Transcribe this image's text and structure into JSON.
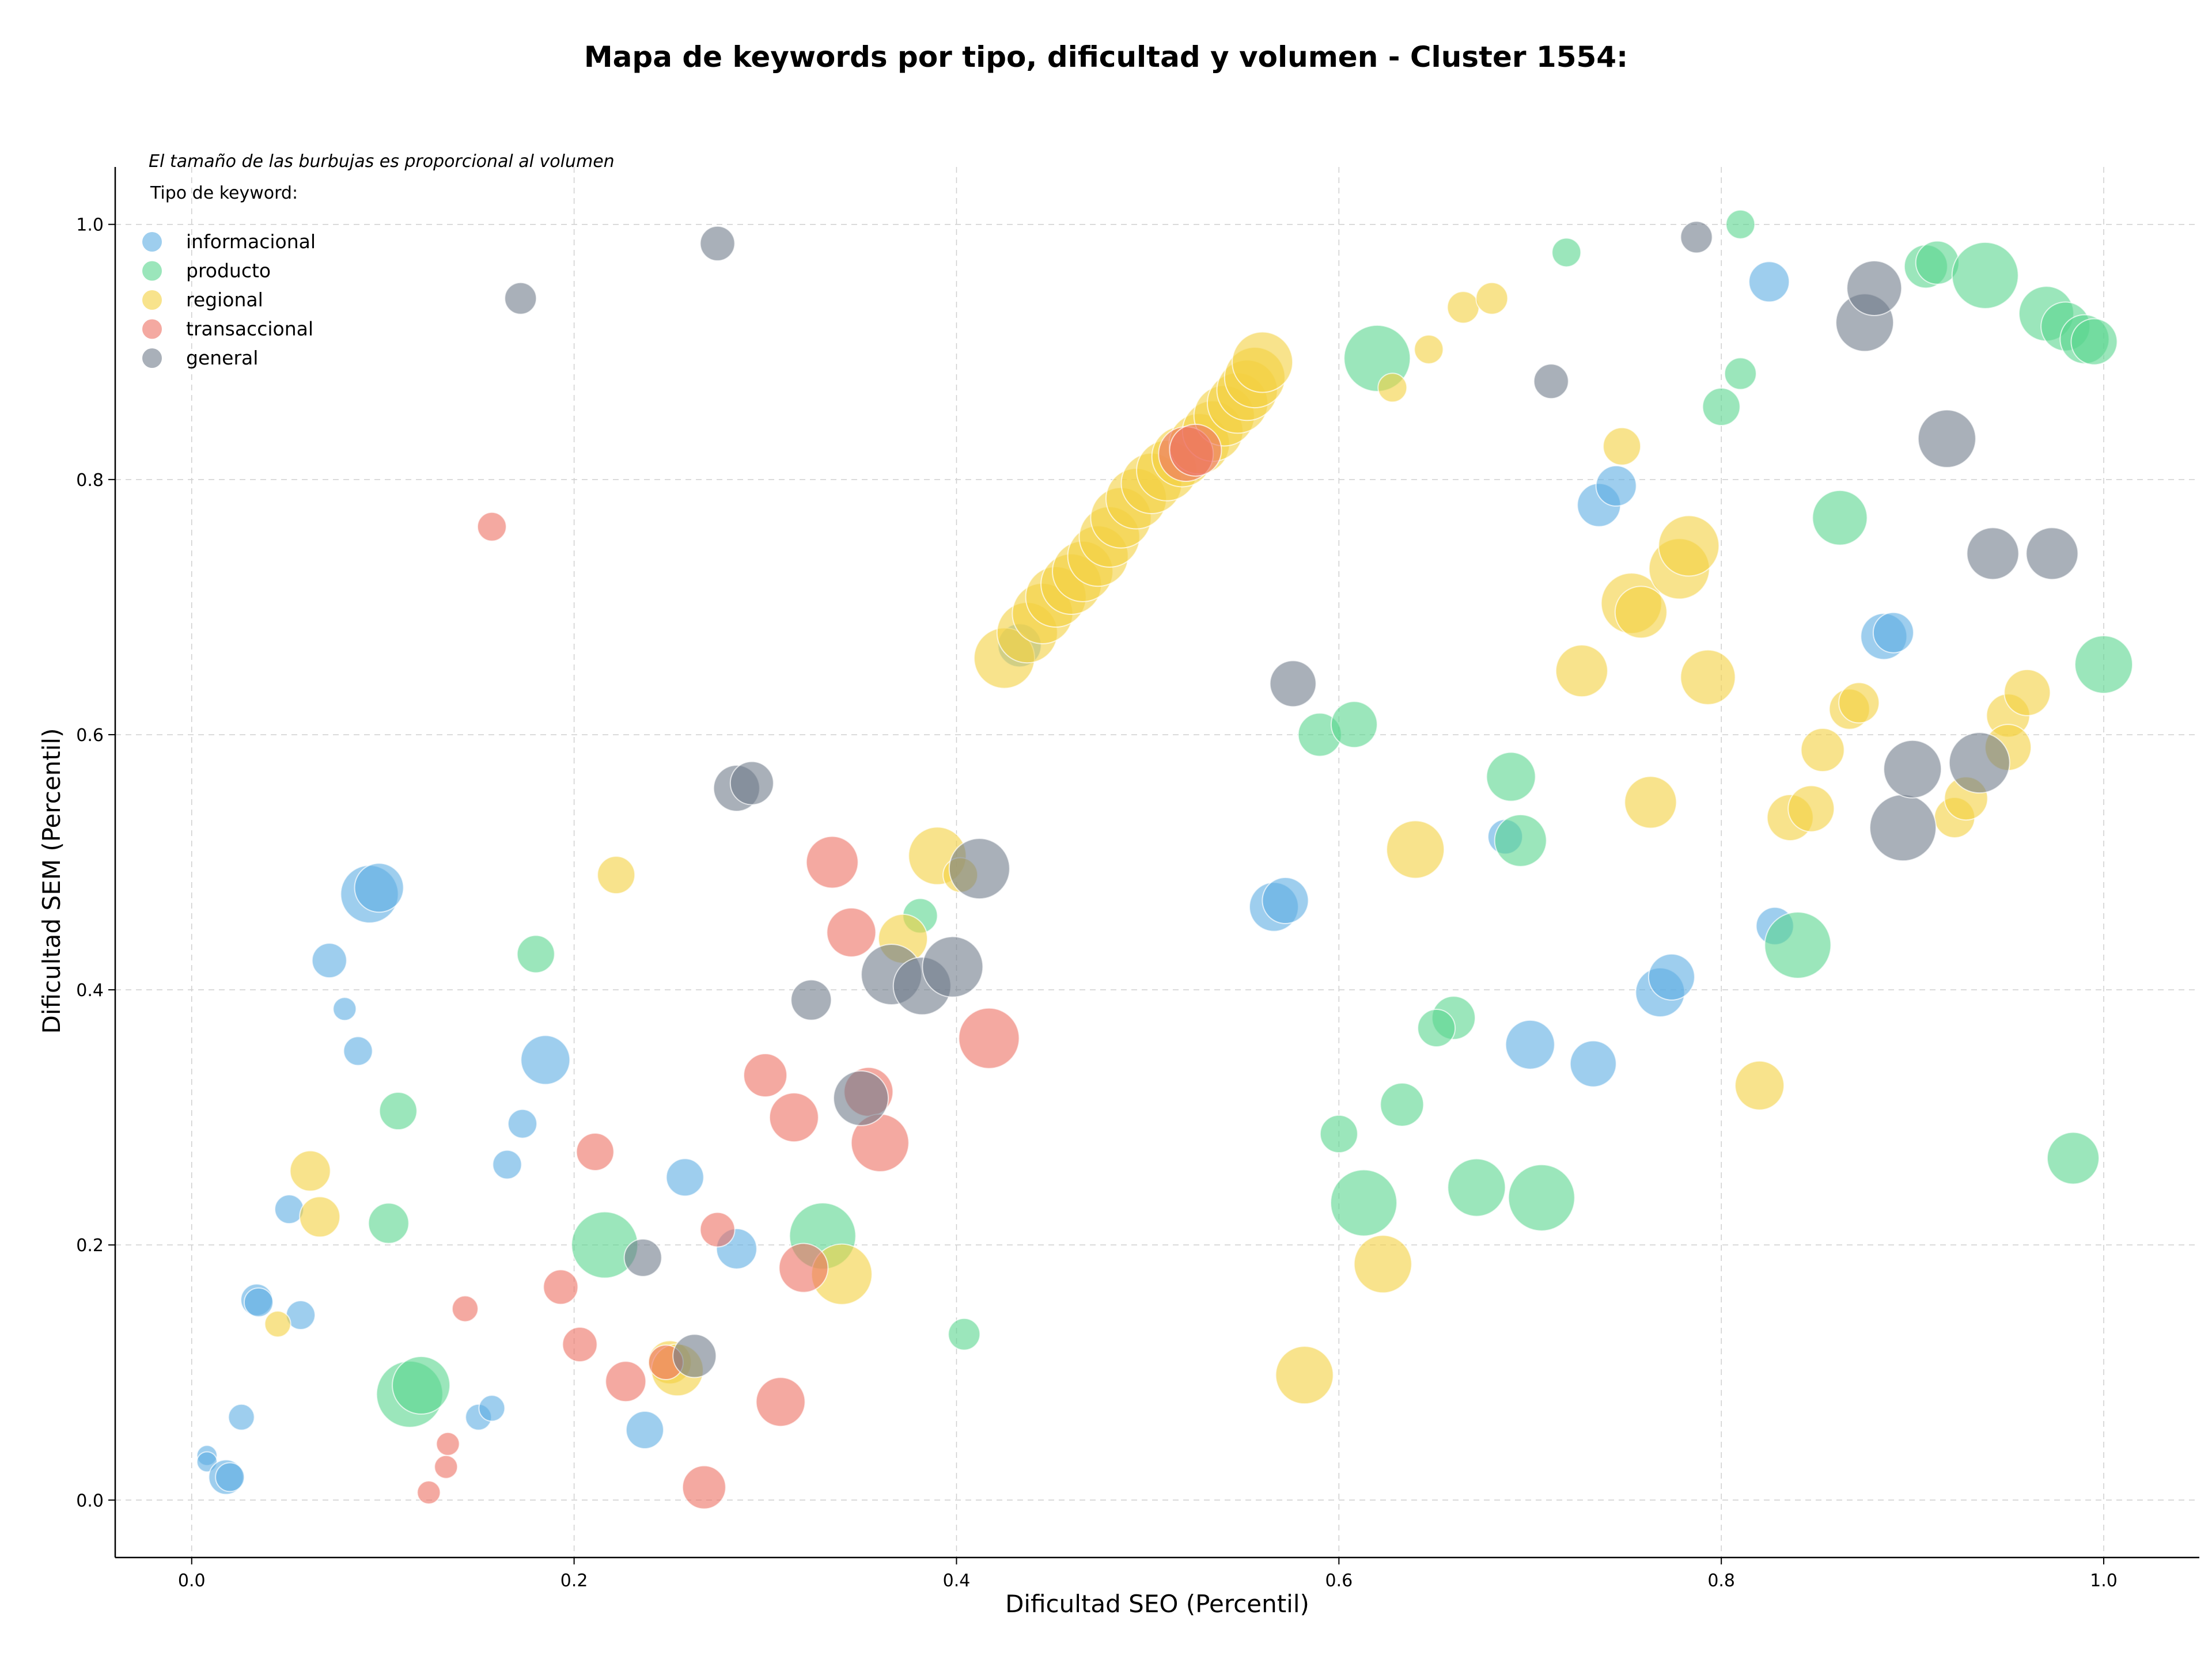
{
  "chart_data": {
    "type": "scatter",
    "title": "Mapa de keywords por tipo, dificultad y volumen - Cluster 1554:",
    "xlabel": "Dificultad SEO (Percentil)",
    "ylabel": "Dificultad SEM (Percentil)",
    "xlim": [
      -0.04,
      1.05
    ],
    "ylim": [
      -0.045,
      1.045
    ],
    "xticks": [
      0.0,
      0.2,
      0.4,
      0.6,
      0.8,
      1.0
    ],
    "yticks": [
      0.0,
      0.2,
      0.4,
      0.6,
      0.8,
      1.0
    ],
    "xtick_labels": [
      "0.0",
      "0.2",
      "0.4",
      "0.6",
      "0.8",
      "1.0"
    ],
    "ytick_labels": [
      "0.0",
      "0.2",
      "0.4",
      "0.6",
      "0.8",
      "1.0"
    ],
    "grid": true,
    "legend_position": "top-left",
    "note": "El tamaño de las burbujas es proporcional al volumen",
    "legend_title": "Tipo de keyword:",
    "series": [
      {
        "name": "informacional",
        "color": "#5dade2",
        "points": [
          [
            0.008,
            0.035,
            0.35
          ],
          [
            0.008,
            0.03,
            0.35
          ],
          [
            0.018,
            0.018,
            0.6
          ],
          [
            0.02,
            0.018,
            0.5
          ],
          [
            0.026,
            0.065,
            0.45
          ],
          [
            0.034,
            0.157,
            0.55
          ],
          [
            0.035,
            0.155,
            0.5
          ],
          [
            0.057,
            0.145,
            0.5
          ],
          [
            0.051,
            0.228,
            0.5
          ],
          [
            0.072,
            0.423,
            0.6
          ],
          [
            0.08,
            0.385,
            0.4
          ],
          [
            0.087,
            0.352,
            0.5
          ],
          [
            0.093,
            0.475,
            1.0
          ],
          [
            0.098,
            0.48,
            0.85
          ],
          [
            0.15,
            0.065,
            0.45
          ],
          [
            0.157,
            0.072,
            0.45
          ],
          [
            0.165,
            0.263,
            0.5
          ],
          [
            0.173,
            0.295,
            0.5
          ],
          [
            0.185,
            0.345,
            0.85
          ],
          [
            0.237,
            0.055,
            0.65
          ],
          [
            0.258,
            0.253,
            0.65
          ],
          [
            0.285,
            0.197,
            0.7
          ],
          [
            0.433,
            0.67,
            0.75
          ],
          [
            0.566,
            0.465,
            0.85
          ],
          [
            0.572,
            0.47,
            0.8
          ],
          [
            0.687,
            0.52,
            0.6
          ],
          [
            0.7,
            0.357,
            0.85
          ],
          [
            0.733,
            0.342,
            0.8
          ],
          [
            0.736,
            0.78,
            0.75
          ],
          [
            0.745,
            0.795,
            0.7
          ],
          [
            0.768,
            0.398,
            0.85
          ],
          [
            0.774,
            0.41,
            0.8
          ],
          [
            0.825,
            0.955,
            0.7
          ],
          [
            0.828,
            0.45,
            0.65
          ],
          [
            0.885,
            0.677,
            0.8
          ],
          [
            0.89,
            0.68,
            0.7
          ]
        ]
      },
      {
        "name": "producto",
        "color": "#58d68d",
        "points": [
          [
            0.108,
            0.305,
            0.65
          ],
          [
            0.103,
            0.217,
            0.7
          ],
          [
            0.114,
            0.083,
            1.15
          ],
          [
            0.12,
            0.09,
            1.0
          ],
          [
            0.18,
            0.428,
            0.65
          ],
          [
            0.216,
            0.2,
            1.15
          ],
          [
            0.33,
            0.207,
            1.15
          ],
          [
            0.381,
            0.458,
            0.6
          ],
          [
            0.404,
            0.13,
            0.55
          ],
          [
            0.59,
            0.6,
            0.75
          ],
          [
            0.608,
            0.608,
            0.8
          ],
          [
            0.6,
            0.287,
            0.65
          ],
          [
            0.62,
            0.895,
            1.15
          ],
          [
            0.613,
            0.233,
            1.15
          ],
          [
            0.633,
            0.31,
            0.75
          ],
          [
            0.66,
            0.378,
            0.75
          ],
          [
            0.651,
            0.37,
            0.65
          ],
          [
            0.69,
            0.567,
            0.85
          ],
          [
            0.695,
            0.517,
            0.9
          ],
          [
            0.672,
            0.245,
            1.0
          ],
          [
            0.706,
            0.237,
            1.15
          ],
          [
            0.719,
            0.978,
            0.5
          ],
          [
            0.81,
            1.0,
            0.5
          ],
          [
            0.81,
            0.883,
            0.55
          ],
          [
            0.8,
            0.857,
            0.65
          ],
          [
            0.862,
            0.77,
            0.95
          ],
          [
            0.84,
            0.435,
            1.15
          ],
          [
            0.907,
            0.967,
            0.75
          ],
          [
            0.913,
            0.97,
            0.75
          ],
          [
            0.938,
            0.96,
            1.15
          ],
          [
            0.97,
            0.93,
            0.95
          ],
          [
            0.98,
            0.92,
            0.85
          ],
          [
            0.99,
            0.91,
            0.85
          ],
          [
            0.995,
            0.908,
            0.8
          ],
          [
            1.0,
            0.655,
            1.0
          ],
          [
            0.984,
            0.268,
            0.9
          ]
        ]
      },
      {
        "name": "regional",
        "color": "#f4d03f",
        "points": [
          [
            0.045,
            0.138,
            0.45
          ],
          [
            0.062,
            0.258,
            0.7
          ],
          [
            0.067,
            0.222,
            0.7
          ],
          [
            0.222,
            0.49,
            0.65
          ],
          [
            0.25,
            0.108,
            0.75
          ],
          [
            0.254,
            0.102,
            0.9
          ],
          [
            0.34,
            0.177,
            1.05
          ],
          [
            0.372,
            0.44,
            0.85
          ],
          [
            0.39,
            0.505,
            1.0
          ],
          [
            0.402,
            0.49,
            0.6
          ],
          [
            0.425,
            0.66,
            1.05
          ],
          [
            0.437,
            0.68,
            1.05
          ],
          [
            0.445,
            0.695,
            1.05
          ],
          [
            0.452,
            0.708,
            1.05
          ],
          [
            0.46,
            0.718,
            1.05
          ],
          [
            0.466,
            0.728,
            1.05
          ],
          [
            0.474,
            0.74,
            1.05
          ],
          [
            0.48,
            0.755,
            1.05
          ],
          [
            0.486,
            0.77,
            1.05
          ],
          [
            0.494,
            0.785,
            1.05
          ],
          [
            0.502,
            0.797,
            1.05
          ],
          [
            0.51,
            0.807,
            1.05
          ],
          [
            0.518,
            0.818,
            1.05
          ],
          [
            0.527,
            0.828,
            1.05
          ],
          [
            0.534,
            0.838,
            1.05
          ],
          [
            0.54,
            0.85,
            1.05
          ],
          [
            0.547,
            0.86,
            1.05
          ],
          [
            0.552,
            0.87,
            1.05
          ],
          [
            0.556,
            0.88,
            1.05
          ],
          [
            0.56,
            0.892,
            1.05
          ],
          [
            0.582,
            0.098,
            1.0
          ],
          [
            0.623,
            0.185,
            1.0
          ],
          [
            0.628,
            0.872,
            0.5
          ],
          [
            0.64,
            0.51,
            1.0
          ],
          [
            0.647,
            0.902,
            0.5
          ],
          [
            0.665,
            0.935,
            0.55
          ],
          [
            0.68,
            0.942,
            0.55
          ],
          [
            0.727,
            0.65,
            0.9
          ],
          [
            0.748,
            0.826,
            0.65
          ],
          [
            0.753,
            0.703,
            1.05
          ],
          [
            0.758,
            0.696,
            0.9
          ],
          [
            0.763,
            0.547,
            0.9
          ],
          [
            0.778,
            0.73,
            1.05
          ],
          [
            0.783,
            0.748,
            1.05
          ],
          [
            0.793,
            0.645,
            0.95
          ],
          [
            0.82,
            0.325,
            0.85
          ],
          [
            0.836,
            0.535,
            0.8
          ],
          [
            0.847,
            0.542,
            0.8
          ],
          [
            0.853,
            0.588,
            0.75
          ],
          [
            0.867,
            0.62,
            0.7
          ],
          [
            0.872,
            0.625,
            0.7
          ],
          [
            0.922,
            0.535,
            0.7
          ],
          [
            0.928,
            0.55,
            0.75
          ],
          [
            0.95,
            0.615,
            0.75
          ],
          [
            0.95,
            0.59,
            0.8
          ],
          [
            0.96,
            0.633,
            0.8
          ]
        ]
      },
      {
        "name": "transaccional",
        "color": "#ec7063",
        "points": [
          [
            0.124,
            0.006,
            0.4
          ],
          [
            0.133,
            0.026,
            0.4
          ],
          [
            0.134,
            0.044,
            0.4
          ],
          [
            0.143,
            0.15,
            0.45
          ],
          [
            0.157,
            0.763,
            0.5
          ],
          [
            0.193,
            0.167,
            0.6
          ],
          [
            0.203,
            0.122,
            0.6
          ],
          [
            0.211,
            0.273,
            0.65
          ],
          [
            0.227,
            0.093,
            0.7
          ],
          [
            0.248,
            0.108,
            0.6
          ],
          [
            0.268,
            0.01,
            0.75
          ],
          [
            0.275,
            0.212,
            0.6
          ],
          [
            0.3,
            0.333,
            0.75
          ],
          [
            0.308,
            0.077,
            0.85
          ],
          [
            0.315,
            0.3,
            0.85
          ],
          [
            0.32,
            0.182,
            0.85
          ],
          [
            0.335,
            0.5,
            0.9
          ],
          [
            0.345,
            0.445,
            0.85
          ],
          [
            0.354,
            0.32,
            0.85
          ],
          [
            0.36,
            0.28,
            1.0
          ],
          [
            0.417,
            0.362,
            1.05
          ],
          [
            0.52,
            0.82,
            0.95
          ],
          [
            0.525,
            0.823,
            0.9
          ]
        ]
      },
      {
        "name": "general",
        "color": "#707b8a",
        "points": [
          [
            0.172,
            0.942,
            0.55
          ],
          [
            0.236,
            0.19,
            0.65
          ],
          [
            0.263,
            0.113,
            0.75
          ],
          [
            0.275,
            0.985,
            0.6
          ],
          [
            0.285,
            0.558,
            0.8
          ],
          [
            0.293,
            0.562,
            0.75
          ],
          [
            0.324,
            0.392,
            0.7
          ],
          [
            0.35,
            0.315,
            0.95
          ],
          [
            0.366,
            0.412,
            1.05
          ],
          [
            0.382,
            0.403,
            1.0
          ],
          [
            0.398,
            0.418,
            1.05
          ],
          [
            0.412,
            0.495,
            1.05
          ],
          [
            0.576,
            0.64,
            0.8
          ],
          [
            0.711,
            0.877,
            0.6
          ],
          [
            0.787,
            0.99,
            0.55
          ],
          [
            0.875,
            0.923,
            1.0
          ],
          [
            0.88,
            0.95,
            0.95
          ],
          [
            0.918,
            0.832,
            1.0
          ],
          [
            0.895,
            0.527,
            1.15
          ],
          [
            0.9,
            0.573,
            1.0
          ],
          [
            0.935,
            0.578,
            1.05
          ],
          [
            0.942,
            0.742,
            0.9
          ],
          [
            0.973,
            0.742,
            0.9
          ]
        ]
      }
    ]
  }
}
